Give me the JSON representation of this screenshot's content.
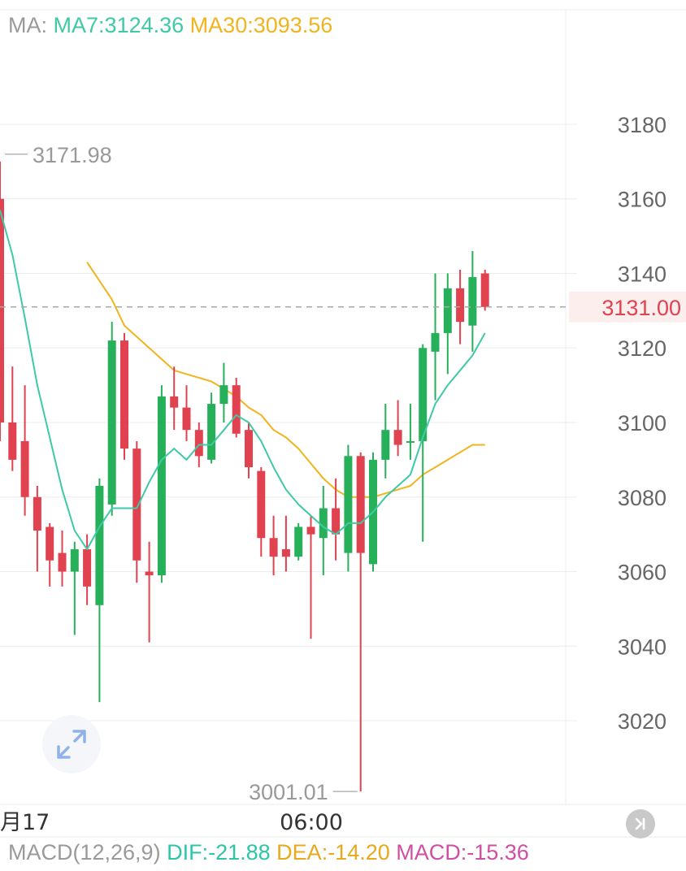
{
  "legend": {
    "ma_label": "MA:",
    "ma7_label": "MA7:3124.36",
    "ma30_label": "MA30:3093.56"
  },
  "macd": {
    "label": "MACD(12,26,9)",
    "dif_label": "DIF:-21.88",
    "dea_label": "DEA:-14.20",
    "macd_label": "MACD:-15.36"
  },
  "colors": {
    "up": "#27b05a",
    "down": "#e0424f",
    "ma7": "#3ec9a7",
    "ma30": "#f0b41e",
    "grid": "#ececec",
    "axis_text": "#666666",
    "price_tag_text": "#e0424f",
    "price_tag_bg": "#fdeeee",
    "dif": "#2bc7a5",
    "dea": "#e8a91c",
    "macd": "#d04fa3"
  },
  "icons": {
    "zoom": "expand-icon",
    "end": "skip-to-latest-icon"
  },
  "chart_data": {
    "type": "candlestick",
    "y_ticks": [
      3020,
      3040,
      3060,
      3080,
      3100,
      3120,
      3140,
      3160,
      3180
    ],
    "ylim": [
      3003,
      3197
    ],
    "x_tick_labels": [
      "月17",
      "06:00"
    ],
    "current_price": 3131.0,
    "current_price_label": "3131.00",
    "high_marker": {
      "value": 3171.98,
      "label": "3171.98"
    },
    "low_marker": {
      "value": 3001.01,
      "label": "3001.01"
    },
    "candles": [
      {
        "o": 3160,
        "h": 3170,
        "l": 3095,
        "c": 3100
      },
      {
        "o": 3100,
        "h": 3115,
        "l": 3087,
        "c": 3090
      },
      {
        "o": 3095,
        "h": 3110,
        "l": 3075,
        "c": 3080
      },
      {
        "o": 3080,
        "h": 3083,
        "l": 3060,
        "c": 3071
      },
      {
        "o": 3072,
        "h": 3073,
        "l": 3056,
        "c": 3063
      },
      {
        "o": 3065,
        "h": 3071,
        "l": 3056,
        "c": 3060
      },
      {
        "o": 3060,
        "h": 3068,
        "l": 3043,
        "c": 3066
      },
      {
        "o": 3066,
        "h": 3070,
        "l": 3051,
        "c": 3056
      },
      {
        "o": 3051,
        "h": 3085,
        "l": 3025,
        "c": 3083
      },
      {
        "o": 3078,
        "h": 3127,
        "l": 3075,
        "c": 3122
      },
      {
        "o": 3122,
        "h": 3124,
        "l": 3090,
        "c": 3093
      },
      {
        "o": 3093,
        "h": 3095,
        "l": 3057,
        "c": 3063
      },
      {
        "o": 3060,
        "h": 3068,
        "l": 3041,
        "c": 3059
      },
      {
        "o": 3059,
        "h": 3110,
        "l": 3057,
        "c": 3107
      },
      {
        "o": 3107,
        "h": 3115,
        "l": 3098,
        "c": 3104
      },
      {
        "o": 3104,
        "h": 3110,
        "l": 3095,
        "c": 3098
      },
      {
        "o": 3098,
        "h": 3100,
        "l": 3088,
        "c": 3091
      },
      {
        "o": 3090,
        "h": 3108,
        "l": 3089,
        "c": 3105
      },
      {
        "o": 3105,
        "h": 3116,
        "l": 3100,
        "c": 3110
      },
      {
        "o": 3110,
        "h": 3112,
        "l": 3096,
        "c": 3097
      },
      {
        "o": 3098,
        "h": 3100,
        "l": 3085,
        "c": 3088
      },
      {
        "o": 3087,
        "h": 3088,
        "l": 3064,
        "c": 3069
      },
      {
        "o": 3069,
        "h": 3075,
        "l": 3059,
        "c": 3064
      },
      {
        "o": 3066,
        "h": 3075,
        "l": 3060,
        "c": 3064
      },
      {
        "o": 3064,
        "h": 3073,
        "l": 3063,
        "c": 3072
      },
      {
        "o": 3072,
        "h": 3075,
        "l": 3042,
        "c": 3070
      },
      {
        "o": 3069,
        "h": 3083,
        "l": 3059,
        "c": 3077
      },
      {
        "o": 3077,
        "h": 3085,
        "l": 3063,
        "c": 3070
      },
      {
        "o": 3065,
        "h": 3094,
        "l": 3060,
        "c": 3091
      },
      {
        "o": 3091,
        "h": 3092,
        "l": 3001,
        "c": 3065
      },
      {
        "o": 3062,
        "h": 3092,
        "l": 3060,
        "c": 3090
      },
      {
        "o": 3090,
        "h": 3105,
        "l": 3085,
        "c": 3098
      },
      {
        "o": 3098,
        "h": 3106,
        "l": 3091,
        "c": 3094
      },
      {
        "o": 3095,
        "h": 3105,
        "l": 3090,
        "c": 3095
      },
      {
        "o": 3095,
        "h": 3121,
        "l": 3068,
        "c": 3120
      },
      {
        "o": 3119,
        "h": 3140,
        "l": 3106,
        "c": 3124
      },
      {
        "o": 3124,
        "h": 3140,
        "l": 3113,
        "c": 3136
      },
      {
        "o": 3136,
        "h": 3141,
        "l": 3121,
        "c": 3127
      },
      {
        "o": 3126,
        "h": 3146,
        "l": 3119,
        "c": 3139
      },
      {
        "o": 3140,
        "h": 3141,
        "l": 3130,
        "c": 3131
      }
    ],
    "series": [
      {
        "name": "MA7",
        "values": [
          3157,
          3145,
          3128,
          3110,
          3096,
          3082,
          3071,
          3066,
          3072,
          3077,
          3077,
          3077,
          3084,
          3090,
          3093,
          3090,
          3094,
          3094,
          3098,
          3102,
          3100,
          3095,
          3088,
          3082,
          3078,
          3075,
          3072,
          3070,
          3073,
          3073,
          3076,
          3080,
          3083,
          3086,
          3096,
          3105,
          3110,
          3114,
          3118,
          3124
        ]
      },
      {
        "name": "MA30",
        "values": [
          null,
          null,
          null,
          null,
          null,
          null,
          null,
          3143,
          3138,
          3133,
          3126,
          3123,
          3120,
          3117,
          3114,
          3113,
          3112,
          3111,
          3109,
          3107,
          3104,
          3102,
          3098,
          3096,
          3093,
          3089,
          3085,
          3082,
          3080,
          3080,
          3080,
          3081,
          3082,
          3083,
          3086,
          3088,
          3090,
          3092,
          3094,
          3094
        ]
      }
    ]
  }
}
